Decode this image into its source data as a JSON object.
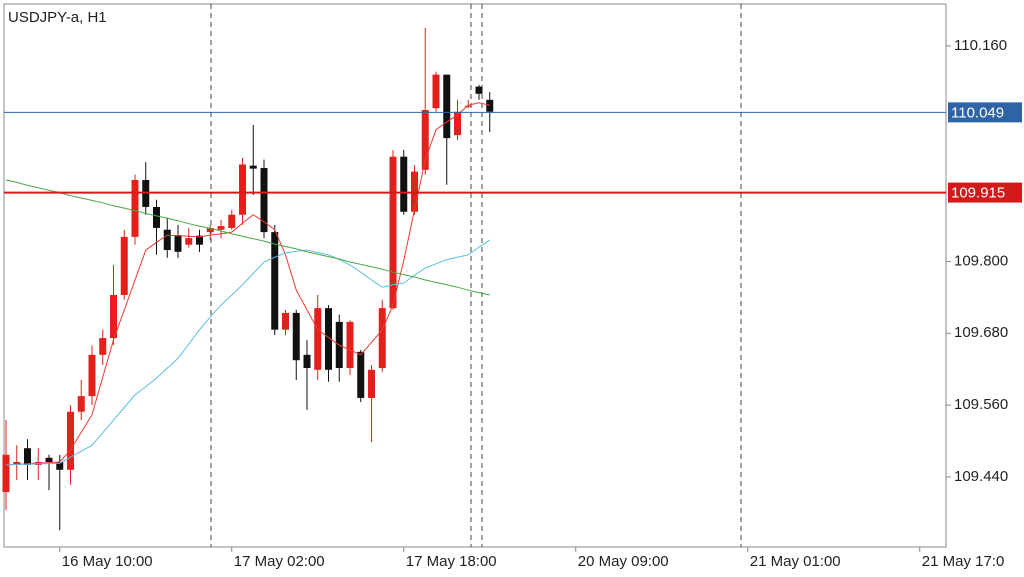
{
  "chart_data": {
    "type": "candlestick",
    "title": "USDJPY-a, H1",
    "categories": [
      null,
      null,
      null,
      null,
      null,
      "16 May 10:00",
      null,
      null,
      null,
      null,
      null,
      null,
      null,
      null,
      null,
      null,
      null,
      null,
      null,
      null,
      null,
      "17 May 02:00",
      null,
      null,
      null,
      null,
      null,
      null,
      null,
      null,
      null,
      null,
      null,
      null,
      null,
      null,
      null,
      "17 May 18:00",
      null,
      null,
      null,
      null,
      null,
      null,
      null,
      null,
      null,
      null,
      null,
      null,
      null,
      null,
      null,
      "20 May 09:00",
      null,
      null,
      null,
      null,
      null,
      null,
      null,
      null,
      null,
      null,
      null,
      null,
      null,
      null,
      null,
      "21 May 01:00",
      null,
      null,
      null,
      null,
      null,
      null,
      null,
      null,
      null,
      null,
      null,
      null,
      null,
      null,
      null,
      "21 May 17:0",
      null,
      null
    ],
    "open": [
      109.415,
      109.46,
      109.488,
      109.46,
      109.472,
      109.465,
      109.452,
      109.549,
      109.575,
      109.644,
      109.672,
      109.744,
      109.841,
      109.936,
      109.891,
      109.853,
      109.844,
      109.828,
      109.843,
      109.849,
      109.853,
      109.856,
      109.878,
      109.96,
      109.956,
      109.849,
      109.686,
      109.714,
      109.644,
      109.619,
      109.722,
      109.699,
      109.622,
      109.649,
      109.572,
      109.622,
      109.722,
      109.975,
      109.883,
      109.953,
      110.056,
      110.112,
      110.011,
      110.06,
      110.092,
      110.07,
      null,
      null,
      null,
      null,
      null,
      null,
      null,
      null,
      null,
      null,
      null,
      null,
      null,
      null,
      null,
      null,
      null,
      null,
      null,
      null,
      null,
      null,
      null,
      null,
      null,
      null,
      null,
      null,
      null,
      null,
      null,
      null,
      null,
      null,
      null,
      null,
      null,
      null,
      null,
      null,
      null,
      null
    ],
    "high": [
      109.535,
      109.493,
      109.503,
      109.488,
      109.477,
      109.477,
      109.56,
      109.602,
      109.66,
      109.686,
      109.794,
      109.853,
      109.945,
      109.966,
      109.903,
      109.873,
      109.861,
      109.856,
      109.853,
      109.861,
      109.869,
      109.886,
      109.973,
      110.028,
      109.97,
      109.861,
      109.719,
      109.719,
      109.669,
      109.744,
      109.727,
      109.711,
      109.702,
      109.652,
      109.627,
      109.736,
      109.986,
      109.986,
      109.961,
      110.19,
      110.117,
      110.112,
      110.07,
      110.07,
      110.095,
      110.083,
      null,
      null,
      null,
      null,
      null,
      null,
      null,
      null,
      null,
      null,
      null,
      null,
      null,
      null,
      null,
      null,
      null,
      null,
      null,
      null,
      null,
      null,
      null,
      null,
      null,
      null,
      null,
      null,
      null,
      null,
      null,
      null,
      null,
      null,
      null,
      null,
      null,
      null,
      null,
      null,
      null,
      null
    ],
    "low": [
      109.385,
      109.435,
      109.435,
      109.435,
      109.418,
      109.351,
      109.427,
      109.535,
      109.56,
      109.627,
      109.66,
      109.736,
      109.828,
      109.878,
      109.811,
      109.806,
      109.806,
      109.823,
      109.816,
      109.836,
      109.839,
      109.853,
      109.861,
      109.911,
      109.839,
      109.677,
      109.677,
      109.602,
      109.552,
      109.602,
      109.599,
      109.599,
      109.61,
      109.565,
      109.498,
      109.615,
      109.719,
      109.878,
      109.878,
      109.945,
      110.05,
      109.928,
      110.003,
      110.056,
      110.07,
      110.016,
      null,
      null,
      null,
      null,
      null,
      null,
      null,
      null,
      null,
      null,
      null,
      null,
      null,
      null,
      null,
      null,
      null,
      null,
      null,
      null,
      null,
      null,
      null,
      null,
      null,
      null,
      null,
      null,
      null,
      null,
      null,
      null,
      null,
      null,
      null,
      null,
      null,
      null,
      null,
      null,
      null,
      null
    ],
    "close": [
      109.477,
      109.465,
      109.46,
      109.465,
      109.465,
      109.452,
      109.549,
      109.575,
      109.644,
      109.672,
      109.744,
      109.841,
      109.936,
      109.891,
      109.856,
      109.819,
      109.816,
      109.839,
      109.828,
      109.856,
      109.859,
      109.878,
      109.962,
      109.955,
      109.849,
      109.686,
      109.714,
      109.635,
      109.622,
      109.722,
      109.619,
      109.622,
      109.699,
      109.572,
      109.619,
      109.722,
      109.975,
      109.883,
      109.95,
      110.053,
      110.112,
      110.006,
      110.05,
      110.06,
      110.08,
      110.05,
      null,
      null,
      null,
      null,
      null,
      null,
      null,
      null,
      null,
      null,
      null,
      null,
      null,
      null,
      null,
      null,
      null,
      null,
      null,
      null,
      null,
      null,
      null,
      null,
      null,
      null,
      null,
      null,
      null,
      null,
      null,
      null,
      null,
      null,
      null,
      null,
      null,
      null,
      null,
      null,
      null,
      null
    ],
    "up_color": "#e3201b",
    "down_color": "#111111",
    "series": [
      {
        "color": "#e83a32",
        "values": [
          109.46,
          109.461,
          109.462,
          109.463,
          109.464,
          109.465,
          109.485,
          109.515,
          109.544,
          109.607,
          109.669,
          109.719,
          109.769,
          109.819,
          109.832,
          109.844,
          109.843,
          109.842,
          109.841,
          109.844,
          109.846,
          109.849,
          109.864,
          109.878,
          109.866,
          109.853,
          109.811,
          109.752,
          109.719,
          109.686,
          109.673,
          109.66,
          109.652,
          109.644,
          109.665,
          109.686,
          109.727,
          109.802,
          109.886,
          109.97,
          110.02,
          110.033,
          110.045,
          110.061,
          110.065,
          110.061,
          null,
          null,
          null,
          null,
          null,
          null,
          null,
          null,
          null,
          null,
          null,
          null,
          null,
          null,
          null,
          null,
          null,
          null,
          null,
          null,
          null,
          null,
          null,
          null,
          null,
          null,
          null,
          null,
          null,
          null,
          null,
          null,
          null,
          null,
          null,
          null,
          null,
          null,
          null,
          null,
          null,
          null
        ]
      },
      {
        "color": "#5bbde6",
        "values": [
          109.46,
          109.461,
          109.461,
          109.462,
          109.462,
          109.463,
          109.473,
          109.483,
          109.493,
          109.514,
          109.535,
          109.556,
          109.577,
          109.591,
          109.605,
          109.622,
          109.638,
          109.662,
          109.686,
          109.707,
          109.727,
          109.744,
          109.761,
          109.78,
          109.799,
          109.807,
          109.814,
          109.817,
          109.819,
          109.815,
          109.811,
          109.803,
          109.794,
          109.782,
          109.769,
          109.757,
          109.761,
          109.764,
          109.777,
          109.789,
          109.796,
          109.803,
          109.807,
          109.811,
          109.824,
          109.836,
          null,
          null,
          null,
          null,
          null,
          null,
          null,
          null,
          null,
          null,
          null,
          null,
          null,
          null,
          null,
          null,
          null,
          null,
          null,
          null,
          null,
          null,
          null,
          null,
          null,
          null,
          null,
          null,
          null,
          null,
          null,
          null,
          null,
          null,
          null,
          null,
          null,
          null,
          null,
          null,
          null,
          null
        ]
      },
      {
        "color": "#4aa84a",
        "values": [
          109.936,
          109.932,
          109.927,
          109.923,
          109.919,
          109.915,
          109.91,
          109.906,
          109.902,
          109.898,
          109.893,
          109.889,
          109.885,
          109.88,
          109.876,
          109.872,
          109.868,
          109.863,
          109.859,
          109.855,
          109.851,
          109.846,
          109.842,
          109.838,
          109.834,
          109.829,
          109.825,
          109.821,
          109.816,
          109.812,
          109.808,
          109.804,
          109.799,
          109.795,
          109.791,
          109.787,
          109.782,
          109.778,
          109.774,
          109.769,
          109.765,
          109.761,
          109.757,
          109.752,
          109.748,
          109.744,
          null,
          null,
          null,
          null,
          null,
          null,
          null,
          null,
          null,
          null,
          null,
          null,
          null,
          null,
          null,
          null,
          null,
          null,
          null,
          null,
          null,
          null,
          null,
          null,
          null,
          null,
          null,
          null,
          null,
          null,
          null,
          null,
          null,
          null,
          null,
          null,
          null,
          null,
          null,
          null,
          null,
          null
        ]
      }
    ],
    "hlines": [
      {
        "value": 110.049,
        "color": "#2e64a6"
      },
      {
        "value": 109.915,
        "color": "#d11a1a"
      }
    ],
    "ylim": [
      109.323,
      110.23
    ],
    "yticks": [
      {
        "value": 110.16,
        "label": "110.160"
      },
      {
        "value": 109.8,
        "label": "109.800"
      },
      {
        "value": 109.68,
        "label": "109.680"
      },
      {
        "value": 109.56,
        "label": "109.560"
      },
      {
        "value": 109.44,
        "label": "109.440"
      }
    ]
  }
}
